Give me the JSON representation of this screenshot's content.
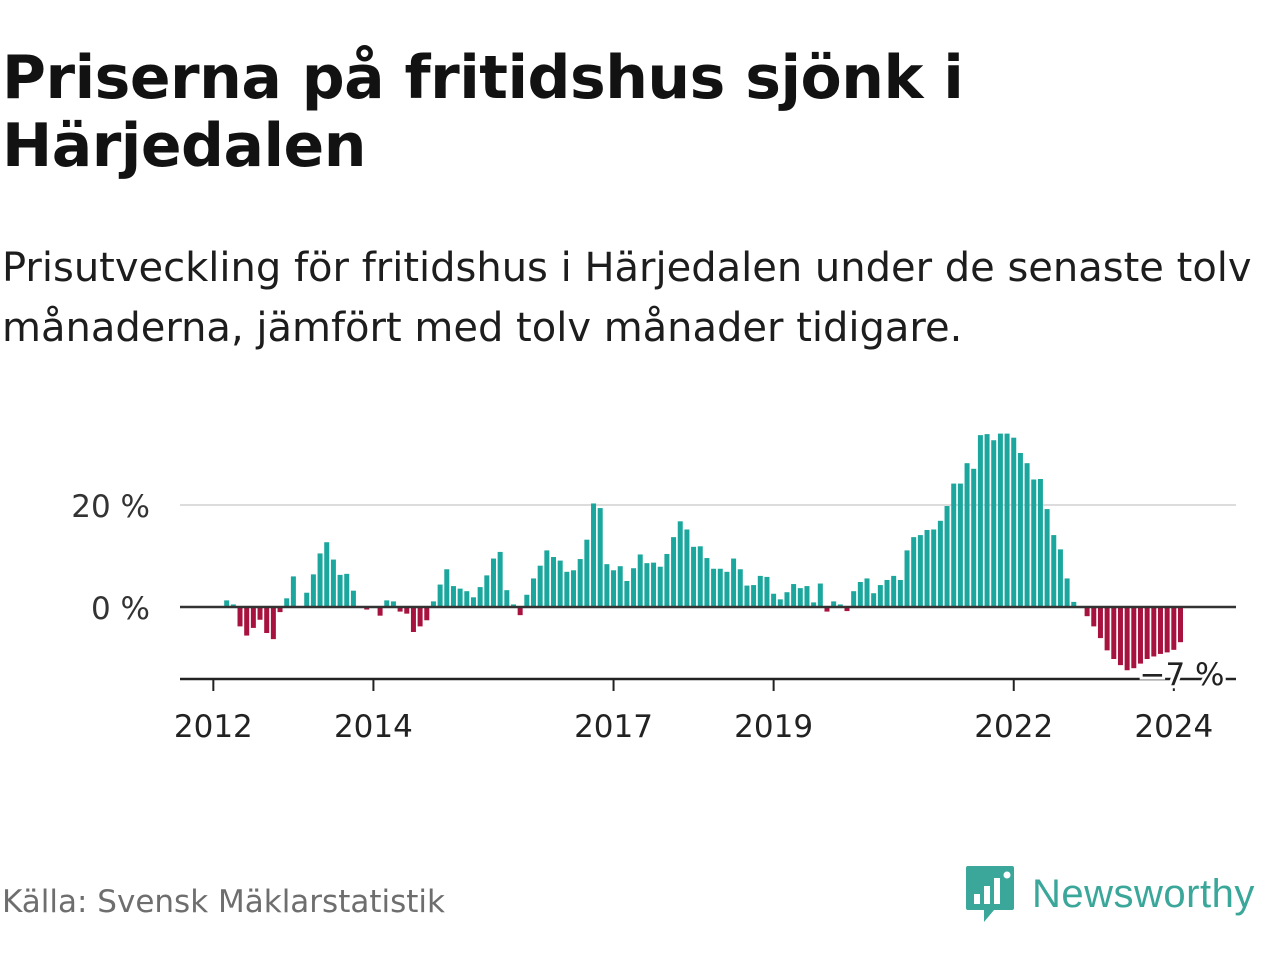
{
  "title": "Priserna på fritidshus sjönk i Härjedalen",
  "subtitle": "Prisutveckling för fritidshus i Härjedalen under de senaste tolv månaderna, jämfört med tolv månader tidigare.",
  "source": "Källa: Svensk Mäklarstatistik",
  "brand": "Newsworthy",
  "colors": {
    "positive": "#1ba79d",
    "negative": "#a8123e",
    "brand": "#3aa79a"
  },
  "chart_data": {
    "type": "bar",
    "unit": "%",
    "start": "2011-11",
    "frequency": "monthly",
    "ylim": [
      -13,
      34
    ],
    "yticks": [
      {
        "value": 0,
        "label": "0 %"
      },
      {
        "value": 20,
        "label": "20 %"
      }
    ],
    "xticks": [
      {
        "index": 2,
        "label": "2012"
      },
      {
        "index": 26,
        "label": "2014"
      },
      {
        "index": 62,
        "label": "2017"
      },
      {
        "index": 86,
        "label": "2019"
      },
      {
        "index": 122,
        "label": "2022"
      },
      {
        "index": 146,
        "label": "2024"
      }
    ],
    "end_label": "−7 %",
    "values": [
      0,
      0,
      0,
      0,
      1.3,
      0.5,
      -3.8,
      -5.6,
      -4.1,
      -2.5,
      -5.1,
      -6.3,
      -1,
      1.7,
      6,
      0.2,
      2.8,
      6.4,
      10.5,
      12.7,
      9.3,
      6.3,
      6.5,
      3.2,
      0.2,
      -0.5,
      0,
      -1.7,
      1.3,
      1.1,
      -0.9,
      -1.3,
      -4.9,
      -3.8,
      -2.6,
      1.1,
      4.4,
      7.4,
      4.1,
      3.6,
      3.1,
      1.9,
      3.9,
      6.2,
      9.5,
      10.8,
      3.3,
      0.5,
      -1.6,
      2.4,
      5.6,
      8.1,
      11.1,
      9.8,
      9.1,
      6.9,
      7.2,
      9.4,
      13.2,
      20.3,
      19.4,
      8.4,
      7.2,
      8,
      5.1,
      7.6,
      10.3,
      8.6,
      8.7,
      7.9,
      10.4,
      13.7,
      16.8,
      15.2,
      11.8,
      11.9,
      9.6,
      7.5,
      7.5,
      6.9,
      9.5,
      7.4,
      4.2,
      4.3,
      6.1,
      5.9,
      2.6,
      1.5,
      2.9,
      4.5,
      3.7,
      4.1,
      0.9,
      4.6,
      -0.9,
      1.1,
      0.5,
      -0.8,
      3.1,
      4.9,
      5.6,
      2.7,
      4.3,
      5.3,
      6.1,
      5.3,
      11.1,
      13.7,
      14.1,
      15.1,
      15.2,
      16.9,
      19.8,
      24.2,
      24.2,
      28.2,
      27.1,
      33.7,
      33.9,
      32.7,
      34,
      34,
      33.2,
      30.2,
      28.2,
      25,
      25.1,
      19.2,
      14.1,
      11.3,
      5.6,
      1,
      -0.2,
      -1.8,
      -3.8,
      -6.1,
      -8.5,
      -10.2,
      -11.4,
      -12.4,
      -12,
      -11.1,
      -10.2,
      -9.7,
      -9.2,
      -8.9,
      -8.4,
      -6.9
    ]
  }
}
